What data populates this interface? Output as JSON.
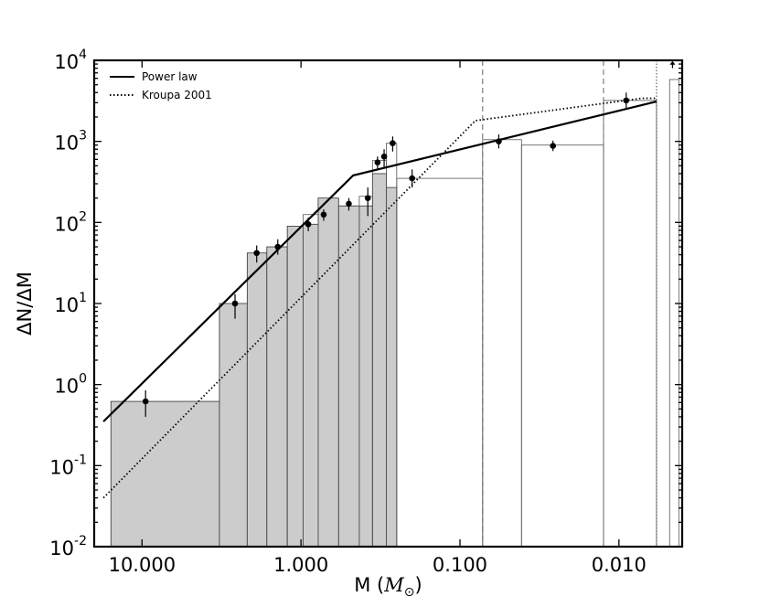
{
  "chart_data": {
    "type": "bar",
    "title": "",
    "xlabel": "M (M_⊙)",
    "xlabel_parts": {
      "prefix": "M (",
      "symbol": "M",
      "subscript": "⊙",
      "suffix": ")"
    },
    "ylabel": "ΔN/ΔM",
    "x_scale": "log",
    "x_inverted": true,
    "y_scale": "log",
    "xlim": [
      20.0,
      0.004
    ],
    "ylim": [
      0.01,
      10000
    ],
    "x_ticks": [
      {
        "value": 10.0,
        "label": "10.000"
      },
      {
        "value": 1.0,
        "label": "1.000"
      },
      {
        "value": 0.1,
        "label": "0.100"
      },
      {
        "value": 0.01,
        "label": "0.010"
      }
    ],
    "y_ticks": [
      {
        "value": 0.01,
        "base": "10",
        "exp": "-2"
      },
      {
        "value": 0.1,
        "base": "10",
        "exp": "-1"
      },
      {
        "value": 1,
        "base": "10",
        "exp": "0"
      },
      {
        "value": 10,
        "base": "10",
        "exp": "1"
      },
      {
        "value": 100,
        "base": "10",
        "exp": "2"
      },
      {
        "value": 1000,
        "base": "10",
        "exp": "3"
      },
      {
        "value": 10000,
        "base": "10",
        "exp": "4"
      }
    ],
    "bars_filled": [
      {
        "m_hi": 15.7,
        "m_lo": 3.26,
        "value": 0.62
      },
      {
        "m_hi": 3.26,
        "m_lo": 2.18,
        "value": 10
      },
      {
        "m_hi": 2.18,
        "m_lo": 1.64,
        "value": 42
      },
      {
        "m_hi": 1.64,
        "m_lo": 1.22,
        "value": 50
      },
      {
        "m_hi": 1.22,
        "m_lo": 0.97,
        "value": 90
      },
      {
        "m_hi": 0.97,
        "m_lo": 0.78,
        "value": 95
      },
      {
        "m_hi": 0.78,
        "m_lo": 0.58,
        "value": 200
      },
      {
        "m_hi": 0.58,
        "m_lo": 0.43,
        "value": 160
      },
      {
        "m_hi": 0.43,
        "m_lo": 0.355,
        "value": 160
      },
      {
        "m_hi": 0.355,
        "m_lo": 0.29,
        "value": 400
      },
      {
        "m_hi": 0.29,
        "m_lo": 0.25,
        "value": 270
      }
    ],
    "bars_outline": [
      {
        "m_hi": 0.97,
        "m_lo": 0.78,
        "value": 125
      },
      {
        "m_hi": 0.43,
        "m_lo": 0.355,
        "value": 210
      },
      {
        "m_hi": 0.355,
        "m_lo": 0.29,
        "value": 580
      },
      {
        "m_hi": 0.29,
        "m_lo": 0.25,
        "value": 950
      },
      {
        "m_hi": 0.25,
        "m_lo": 0.072,
        "value": 350
      },
      {
        "m_hi": 0.072,
        "m_lo": 0.041,
        "value": 1050
      },
      {
        "m_hi": 0.041,
        "m_lo": 0.0125,
        "value": 900
      },
      {
        "m_hi": 0.0125,
        "m_lo": 0.0058,
        "value": 3200
      },
      {
        "m_hi": 0.0048,
        "m_lo": 0.0042,
        "value": 5800
      }
    ],
    "points": [
      {
        "m": 9.5,
        "value": 0.62,
        "err_lo": 0.4,
        "err_hi": 0.85
      },
      {
        "m": 2.6,
        "value": 10,
        "err_lo": 6.5,
        "err_hi": 13
      },
      {
        "m": 1.9,
        "value": 42,
        "err_lo": 32,
        "err_hi": 52
      },
      {
        "m": 1.4,
        "value": 50,
        "err_lo": 40,
        "err_hi": 62
      },
      {
        "m": 0.9,
        "value": 95,
        "err_lo": 78,
        "err_hi": 115
      },
      {
        "m": 0.72,
        "value": 125,
        "err_lo": 105,
        "err_hi": 145
      },
      {
        "m": 0.5,
        "value": 170,
        "err_lo": 140,
        "err_hi": 200
      },
      {
        "m": 0.38,
        "value": 200,
        "err_lo": 120,
        "err_hi": 270
      },
      {
        "m": 0.33,
        "value": 550,
        "err_lo": 450,
        "err_hi": 650
      },
      {
        "m": 0.3,
        "value": 650,
        "err_lo": 470,
        "err_hi": 800
      },
      {
        "m": 0.265,
        "value": 950,
        "err_lo": 750,
        "err_hi": 1150
      },
      {
        "m": 0.2,
        "value": 350,
        "err_lo": 270,
        "err_hi": 450
      },
      {
        "m": 0.057,
        "value": 1000,
        "err_lo": 820,
        "err_hi": 1220
      },
      {
        "m": 0.026,
        "value": 880,
        "err_lo": 760,
        "err_hi": 1020
      },
      {
        "m": 0.009,
        "value": 3200,
        "err_lo": 2500,
        "err_hi": 4000
      }
    ],
    "lower_limit_arrow": {
      "m": 0.0046,
      "value": 8000,
      "to": 9800
    },
    "vlines_dashed": [
      0.072,
      0.0125
    ],
    "vline_dotted": 0.0058,
    "series": [
      {
        "name": "Power law",
        "style": "solid",
        "x": [
          17.5,
          0.47,
          0.0058
        ],
        "y": [
          0.35,
          380,
          3100
        ]
      },
      {
        "name": "Kroupa 2001",
        "style": "dotted",
        "x": [
          17.5,
          0.08,
          0.0072,
          0.0058
        ],
        "y": [
          0.04,
          1800,
          3400,
          3400
        ]
      }
    ],
    "legend": {
      "position": "top-left"
    },
    "grid": false
  }
}
